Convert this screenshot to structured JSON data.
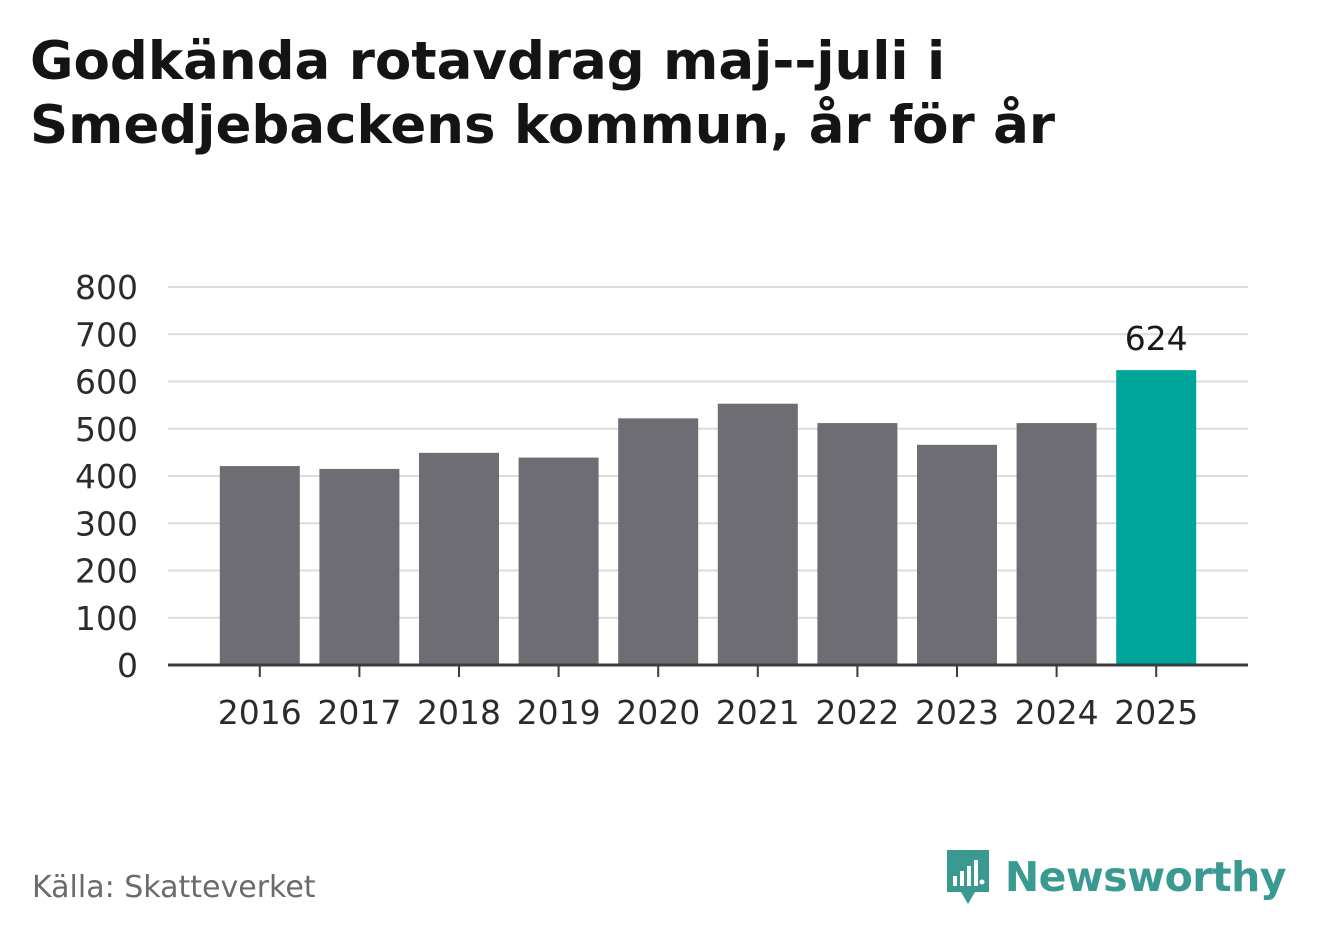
{
  "chart_data": {
    "type": "bar",
    "title": "Godkända rotavdrag maj--juli i Smedjebackens kommun, år för år",
    "xlabel": "",
    "ylabel": "",
    "categories": [
      "2016",
      "2017",
      "2018",
      "2019",
      "2020",
      "2021",
      "2022",
      "2023",
      "2024",
      "2025"
    ],
    "values": [
      421,
      415,
      449,
      439,
      522,
      553,
      512,
      466,
      512,
      624
    ],
    "highlight_index": 9,
    "data_labels": [
      {
        "index": 9,
        "text": "624"
      }
    ],
    "yticks": [
      "0",
      "100",
      "200",
      "300",
      "400",
      "500",
      "600",
      "700",
      "800"
    ],
    "ylim": [
      0,
      800
    ],
    "grid": true,
    "legend": "none",
    "colors": {
      "bar": "#6e6d73",
      "highlight": "#00a59a",
      "grid": "#dcdcdc",
      "axis": "#3c3c3c",
      "tick_text": "#2b2b2b"
    }
  },
  "source_label": "Källa: Skatteverket",
  "brand": {
    "name": "Newsworthy",
    "icon": "newsworthy-logo-icon",
    "color": "#3a9a92"
  }
}
